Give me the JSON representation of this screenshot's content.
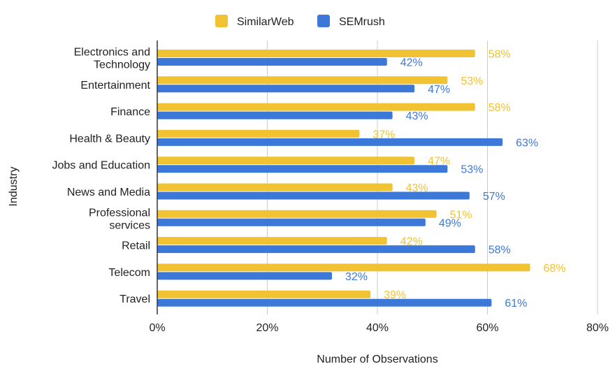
{
  "chart_data": {
    "type": "bar",
    "orientation": "horizontal",
    "title": "",
    "xlabel": "Number of Observations",
    "ylabel": "Industry",
    "xlim": [
      0,
      80
    ],
    "x_ticks": [
      0,
      20,
      40,
      60,
      80
    ],
    "x_tick_format": "percent",
    "grid": "vertical",
    "legend_position": "top",
    "categories": [
      [
        "Electronics and",
        "Technology"
      ],
      [
        "Entertainment"
      ],
      [
        "Finance"
      ],
      [
        "Health & Beauty"
      ],
      [
        "Jobs and Education"
      ],
      [
        "News and Media"
      ],
      [
        "Professional",
        "services"
      ],
      [
        "Retail"
      ],
      [
        "Telecom"
      ],
      [
        "Travel"
      ]
    ],
    "series": [
      {
        "name": "SimilarWeb",
        "color": "#f1c232",
        "values": [
          58,
          53,
          58,
          37,
          47,
          43,
          51,
          42,
          68,
          39
        ]
      },
      {
        "name": "SEMrush",
        "color": "#3c78d8",
        "values": [
          42,
          47,
          43,
          63,
          53,
          57,
          49,
          58,
          32,
          61
        ]
      }
    ]
  }
}
